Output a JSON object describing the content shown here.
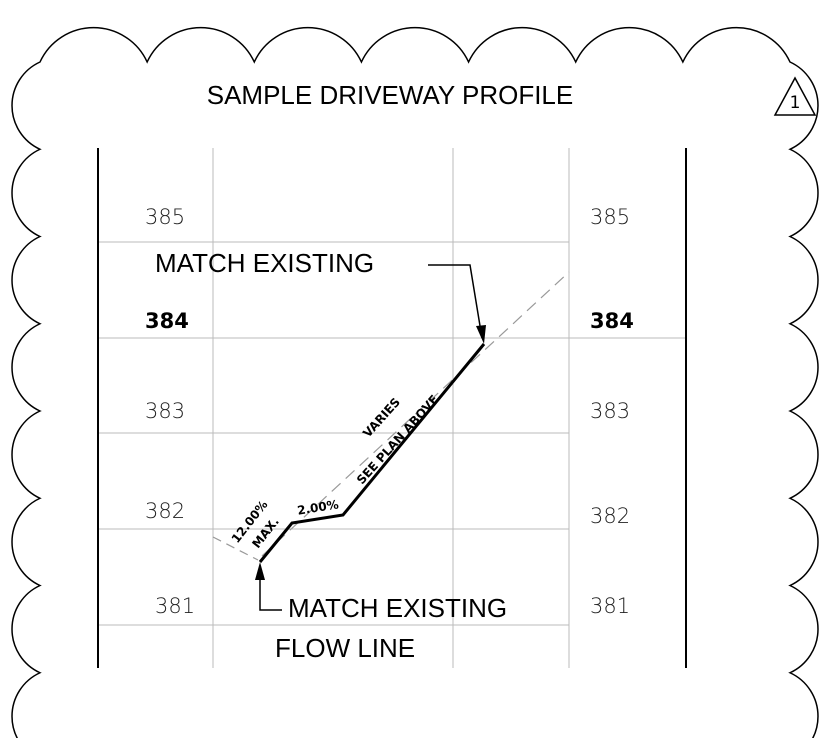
{
  "title": "SAMPLE DRIVEWAY PROFILE",
  "revision": "1",
  "elevations_left": [
    "385",
    "384",
    "383",
    "382",
    "381"
  ],
  "elevations_right": [
    "385",
    "384",
    "383",
    "382",
    "381"
  ],
  "annotations": {
    "top_match": "MATCH EXISTING",
    "bottom_match": "MATCH EXISTING",
    "flow_line": "FLOW LINE",
    "slope_max": "12.00%",
    "max": "MAX.",
    "slope_flat": "2.00%",
    "varies": "VARIES",
    "see_plan": "SEE PLAN ABOVE"
  }
}
